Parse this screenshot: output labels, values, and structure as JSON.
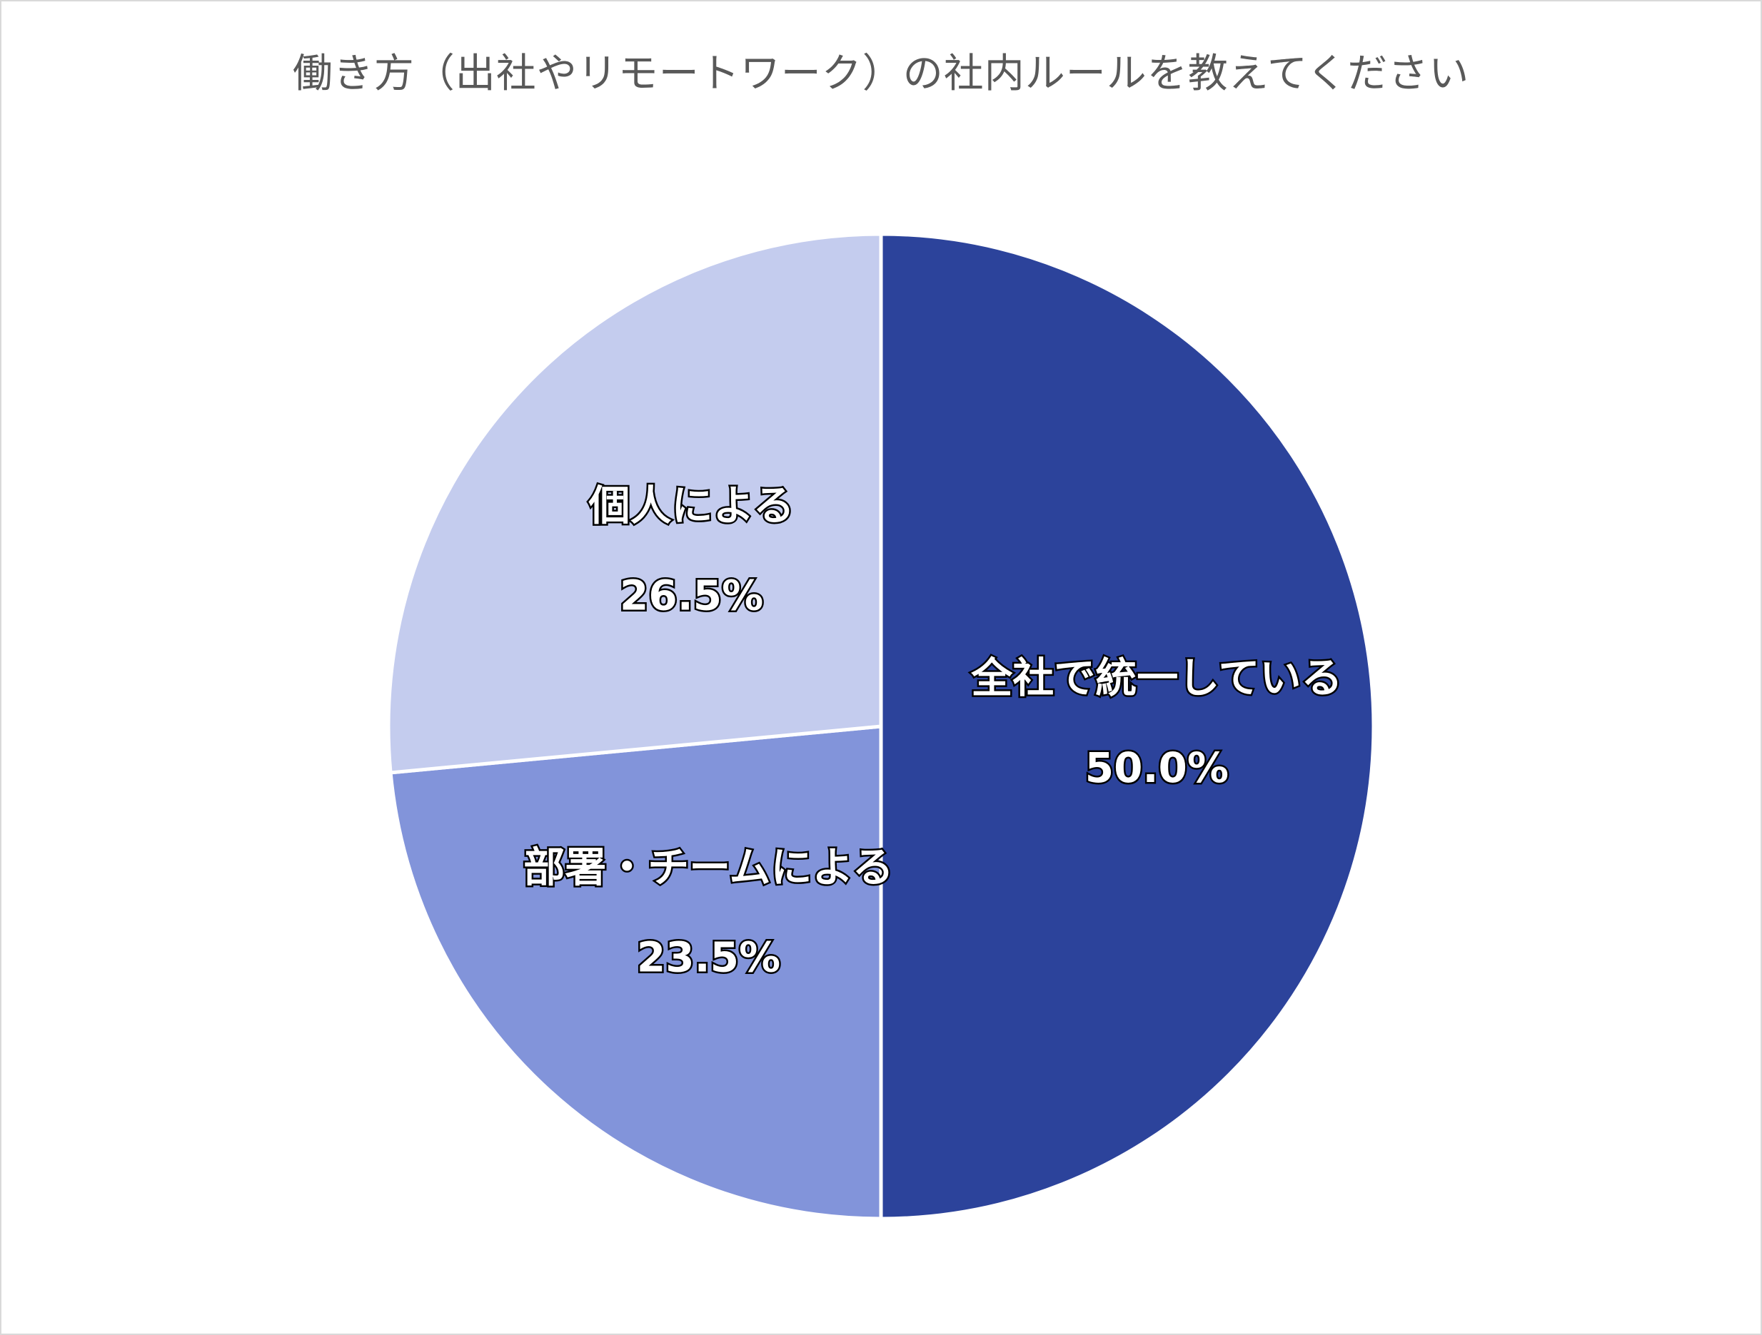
{
  "chart_data": {
    "type": "pie",
    "title": "働き方（出社やリモートワーク）の社内ルールを教えてください",
    "slices": [
      {
        "label": "全社で統一している",
        "value": 50.0,
        "value_label": "50.0%",
        "color": "#2c439b"
      },
      {
        "label": "部署・チームによる",
        "value": 23.5,
        "value_label": "23.5%",
        "color": "#8294da"
      },
      {
        "label": "個人による",
        "value": 26.5,
        "value_label": "26.5%",
        "color": "#c4ccee"
      }
    ],
    "start_angle": "12 o'clock",
    "direction": "clockwise",
    "legend": "none"
  }
}
